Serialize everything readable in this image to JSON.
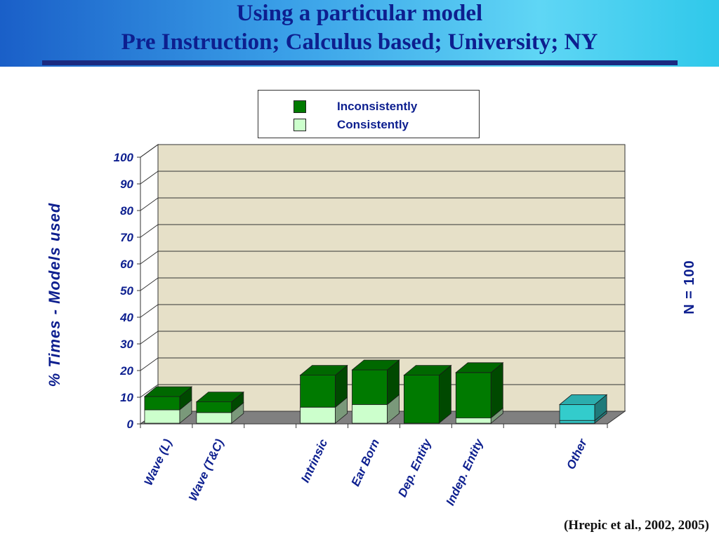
{
  "slide": {
    "title_line1": "Using a particular model",
    "title_line2": "Pre Instruction; Calculus based; University; NY",
    "sample_size": "N = 100",
    "citation": "(Hrepic et al., 2002, 2005)"
  },
  "colors": {
    "inconsistently": "#007a00",
    "consistently": "#ccffcc",
    "other": "#33cccc",
    "plot_back": "#e6e0c8",
    "floor": "#808080",
    "title": "#0d1f8f"
  },
  "chart_data": {
    "type": "bar",
    "stacked": true,
    "title": "",
    "xlabel": "",
    "ylabel": "% Times - Models used",
    "ylim": [
      0,
      100
    ],
    "yticks": [
      0,
      10,
      20,
      30,
      40,
      50,
      60,
      70,
      80,
      90,
      100
    ],
    "grid": true,
    "legend_position": "top-center",
    "categories": [
      "Wave (L)",
      "Wave (T&C)",
      "",
      "Intrinsic",
      "Ear Born",
      "Dep. Entity",
      "Indep. Entity",
      "",
      "Other"
    ],
    "series": [
      {
        "name": "Consistently",
        "values": [
          5,
          4,
          0,
          6,
          7,
          0,
          2,
          0,
          1
        ]
      },
      {
        "name": "Inconsistently",
        "values": [
          5,
          4,
          0,
          12,
          13,
          18,
          17,
          0,
          6
        ]
      }
    ]
  }
}
